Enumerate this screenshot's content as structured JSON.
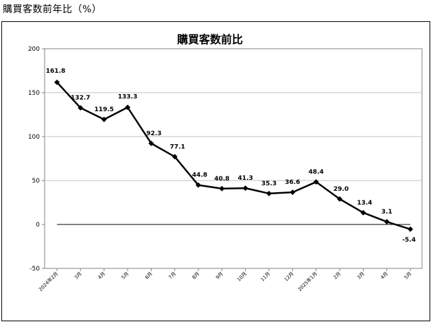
{
  "page_heading": "購買客数前年比（%）",
  "chart_data": {
    "type": "line",
    "title": "購買客数前比",
    "xlabel": "",
    "ylabel": "",
    "categories": [
      "2024年2月",
      "3月",
      "4月",
      "5月",
      "6月",
      "7月",
      "8月",
      "9月",
      "10月",
      "11月",
      "12月",
      "2025年1月",
      "2月",
      "3月",
      "4月",
      "5月"
    ],
    "series": [
      {
        "values": [
          161.8,
          132.7,
          119.5,
          133.3,
          92.3,
          77.1,
          44.8,
          40.8,
          41.3,
          35.3,
          36.6,
          48.4,
          29.0,
          13.4,
          3.1,
          -5.4
        ]
      }
    ],
    "data_labels": [
      "161.8",
      "132.7",
      "119.5",
      "133.3",
      "92.3",
      "77.1",
      "44.8",
      "40.8",
      "41.3",
      "35.3",
      "36.6",
      "48.4",
      "29.0",
      "13.4",
      "3.1",
      "-5.4"
    ],
    "ylim": [
      -50,
      200
    ],
    "yticks": [
      -50,
      0,
      50,
      100,
      150,
      200
    ],
    "grid": true,
    "legend": "none",
    "line_color": "#000000",
    "grid_color": "#c0c0c0"
  }
}
